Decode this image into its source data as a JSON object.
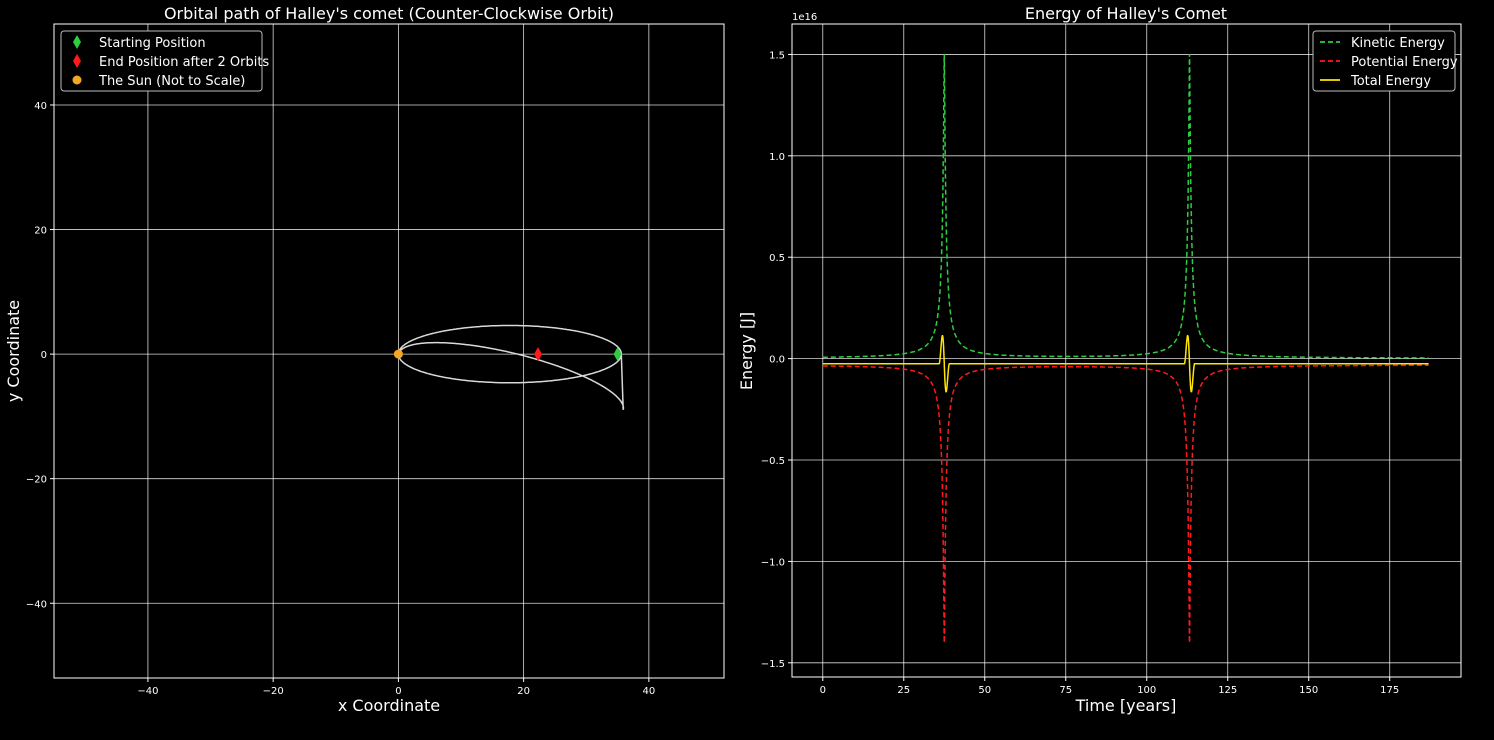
{
  "chart_data": [
    {
      "type": "line",
      "title": "Orbital path of Halley's comet (Counter-Clockwise Orbit)",
      "xlabel": "x Coordinate",
      "ylabel": "y Coordinate",
      "xlim": [
        -55,
        52
      ],
      "ylim": [
        -52,
        53
      ],
      "xticks": [
        -40,
        -20,
        0,
        20,
        40
      ],
      "yticks": [
        -40,
        -20,
        0,
        20,
        40
      ],
      "xtick_labels": [
        "−40",
        "−20",
        "0",
        "20",
        "40"
      ],
      "ytick_labels": [
        "−40",
        "−20",
        "0",
        "20",
        "40"
      ],
      "grid": true,
      "legend_position": "top-left",
      "orbit_color": "#d9d9d9",
      "orbit": {
        "orbits": [
          {
            "a": 17.8,
            "c": 17.8,
            "b": 4.6,
            "tilt_deg": 0
          },
          {
            "a": 18.5,
            "c": 18.5,
            "b": 4.6,
            "tilt_deg": -14
          }
        ],
        "start_angle_deg": 0,
        "end_angle_deg": 180
      },
      "markers": [
        {
          "label": "Starting Position",
          "x": 35,
          "y": 0,
          "color": "#2ecc40",
          "shape": "diamond"
        },
        {
          "label": "End Position after 2 Orbits",
          "x": 22.3,
          "y": 0,
          "color": "#ff1a1a",
          "shape": "diamond"
        },
        {
          "label": "The Sun (Not to Scale)",
          "x": 0,
          "y": 0,
          "color": "#f5a623",
          "shape": "circle"
        }
      ]
    },
    {
      "type": "line",
      "title": "Energy of Halley's Comet",
      "xlabel": "Time [years]",
      "ylabel": "Energy [J]",
      "offset_label": "1e16",
      "xlim": [
        -9.5,
        197
      ],
      "ylim": [
        -1.57,
        1.65
      ],
      "xticks": [
        0,
        25,
        50,
        75,
        100,
        125,
        150,
        175
      ],
      "xtick_labels": [
        "0",
        "25",
        "50",
        "75",
        "100",
        "125",
        "150",
        "175"
      ],
      "yticks": [
        -1.5,
        -1.0,
        -0.5,
        0.0,
        0.5,
        1.0,
        1.5
      ],
      "ytick_labels": [
        "−1.5",
        "−1.0",
        "−0.5",
        "0.0",
        "0.5",
        "1.0",
        "1.5"
      ],
      "grid": true,
      "legend_position": "top-right",
      "time_range": [
        0,
        187
      ],
      "perihelion_times": [
        37.5,
        113.2
      ],
      "series": [
        {
          "name": "Kinetic Energy",
          "color": "#2ecc40",
          "dash": true,
          "baseline": 0.0,
          "peak": 1.5,
          "sign": 1
        },
        {
          "name": "Potential Energy",
          "color": "#ff1a1a",
          "dash": true,
          "baseline": -0.03,
          "peak": -1.4,
          "sign": -1
        },
        {
          "name": "Total Energy",
          "color": "#ffe600",
          "dash": false,
          "baseline": -0.025,
          "peak": 0.17,
          "sign": 0
        }
      ]
    }
  ]
}
